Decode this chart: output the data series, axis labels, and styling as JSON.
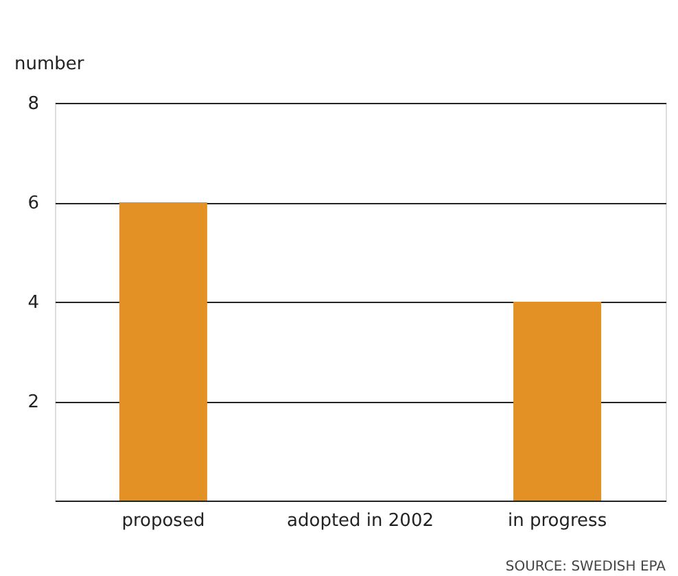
{
  "chart_data": {
    "type": "bar",
    "ylabel": "number",
    "categories": [
      "proposed",
      "adopted in 2002",
      "in progress"
    ],
    "values": [
      6,
      0,
      4
    ],
    "color": "#e39024",
    "ylim": [
      0,
      8
    ],
    "yticks": [
      2,
      4,
      6,
      8
    ],
    "grid": "y",
    "annotations": [
      "SOURCE: SWEDISH EPA"
    ]
  }
}
